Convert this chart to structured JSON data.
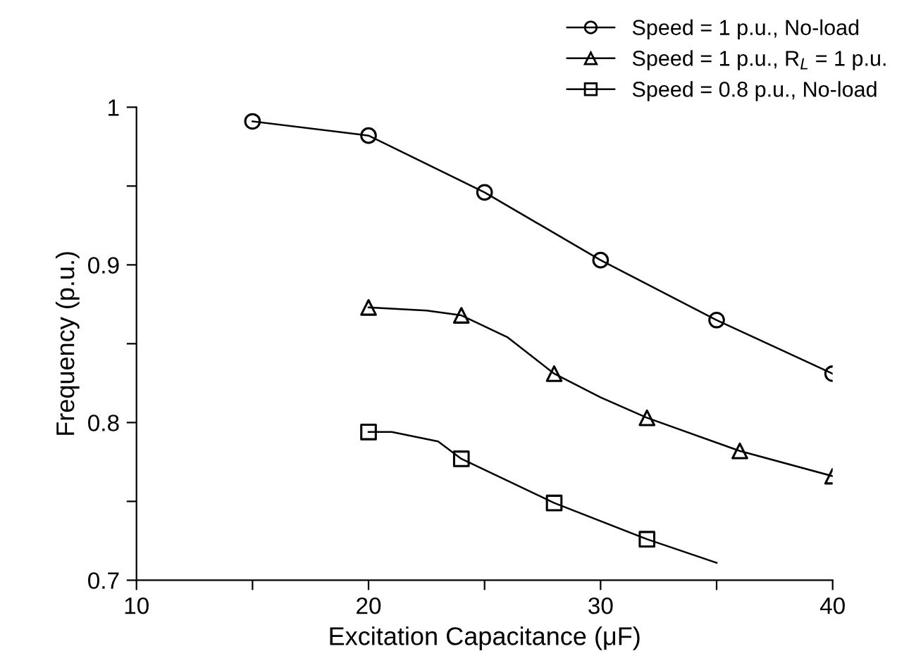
{
  "chart_data": {
    "type": "line",
    "xlabel": "Excitation Capacitance (μF)",
    "ylabel": "Frequency (p.u.)",
    "xlim": [
      10,
      40
    ],
    "xticks": [
      10,
      {
        "value": 15,
        "label": null
      },
      20,
      {
        "value": 25,
        "label": null
      },
      30,
      {
        "value": 35,
        "label": null
      },
      40
    ],
    "ylim": [
      0.7,
      1.0
    ],
    "yticks": [
      0.7,
      {
        "value": 0.75,
        "label": null
      },
      0.8,
      {
        "value": 0.85,
        "label": null
      },
      0.9,
      {
        "value": 0.95,
        "label": null
      },
      {
        "value": 1.0,
        "label": "1"
      }
    ],
    "grid": false,
    "legend": "top right",
    "series": [
      {
        "marker": "none",
        "color": "#000000",
        "x": [
          15,
          20,
          25,
          30,
          35,
          40
        ],
        "values": [
          0.991,
          0.982,
          0.946,
          0.903,
          0.865,
          0.831
        ]
      },
      {
        "marker": "none",
        "color": "#000000",
        "x": [
          20,
          22.5,
          24,
          26,
          28,
          30,
          32,
          36,
          40
        ],
        "values": [
          0.873,
          0.871,
          0.868,
          0.854,
          0.831,
          0.816,
          0.803,
          0.782,
          0.766
        ]
      },
      {
        "marker": "none",
        "color": "#000000",
        "x": [
          20,
          21,
          23,
          24,
          28,
          32,
          35
        ],
        "values": [
          0.794,
          0.794,
          0.788,
          0.777,
          0.749,
          0.726,
          0.711
        ]
      },
      {
        "type": "scatter",
        "marker": "circle",
        "name": "Speed = 1 p.u., No-load",
        "color": "#000000",
        "x": [
          15,
          20,
          25,
          30,
          35,
          40
        ],
        "values": [
          0.991,
          0.982,
          0.946,
          0.903,
          0.865,
          0.831
        ]
      },
      {
        "type": "scatter",
        "marker": "triangle",
        "name": "Speed = 1 p.u., R$_{L}$ = 1 p.u.",
        "color": "#000000",
        "x": [
          20,
          24,
          28,
          32,
          36,
          40
        ],
        "values": [
          0.873,
          0.868,
          0.831,
          0.803,
          0.782,
          0.766
        ]
      },
      {
        "type": "scatter",
        "marker": "square",
        "name": "Speed = 0.8 p.u., No-load",
        "color": "#000000",
        "x": [
          20,
          24,
          28,
          32
        ],
        "values": [
          0.794,
          0.777,
          0.749,
          0.726
        ]
      }
    ]
  }
}
